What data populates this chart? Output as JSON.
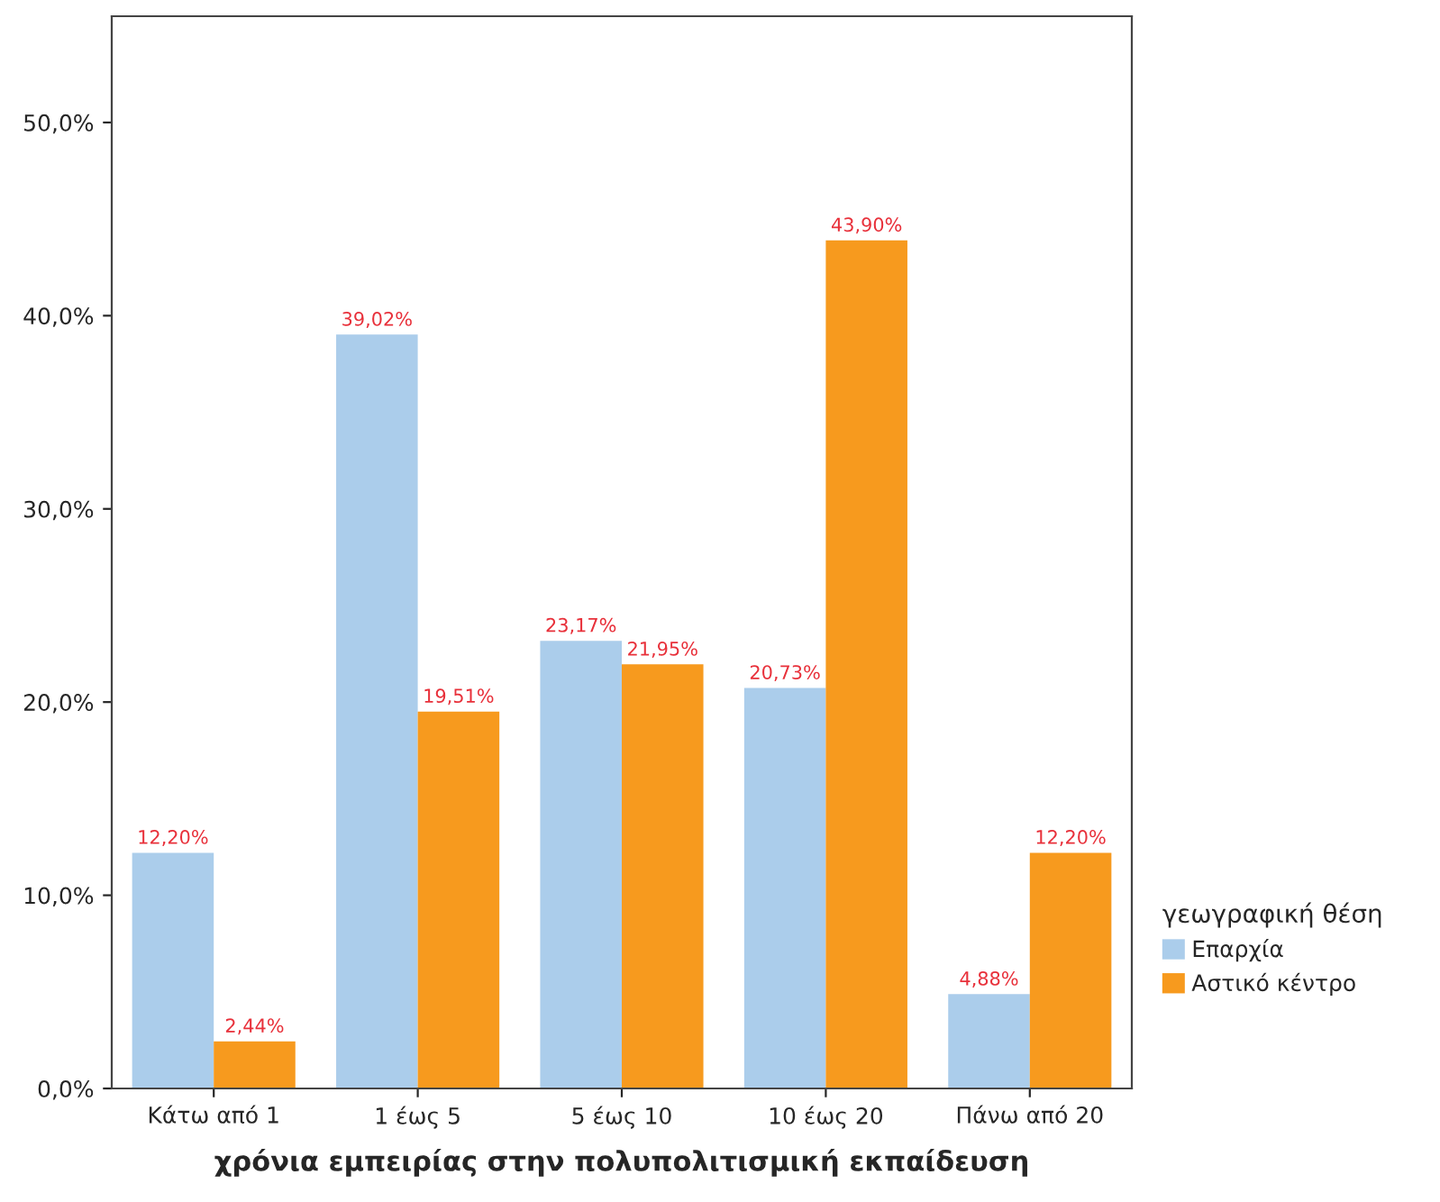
{
  "chart_data": {
    "type": "bar",
    "xlabel": "χρόνια εμπειρίας στην πολυπολιτισμική εκπαίδευση",
    "legend_title": "γεωγραφική θέση",
    "categories": [
      "Κάτω από 1",
      "1 έως 5",
      "5 έως 10",
      "10 έως 20",
      "Πάνω από 20"
    ],
    "series": [
      {
        "name": "Επαρχία",
        "color": "#abcdeb",
        "values": [
          12.2,
          39.02,
          23.17,
          20.73,
          4.88
        ],
        "value_labels": [
          "12,20%",
          "39,02%",
          "23,17%",
          "20,73%",
          "4,88%"
        ]
      },
      {
        "name": "Αστικό κέντρο",
        "color": "#f79a1e",
        "values": [
          2.44,
          19.51,
          21.95,
          43.9,
          12.2
        ],
        "value_labels": [
          "2,44%",
          "19,51%",
          "21,95%",
          "43,90%",
          "12,20%"
        ]
      }
    ],
    "ylim": [
      0,
      55.5
    ],
    "yticks": [
      {
        "value": 0,
        "label": "0,0%"
      },
      {
        "value": 10,
        "label": "10,0%"
      },
      {
        "value": 20,
        "label": "20,0%"
      },
      {
        "value": 30,
        "label": "30,0%"
      },
      {
        "value": 40,
        "label": "40,0%"
      },
      {
        "value": 50,
        "label": "50,0%"
      }
    ],
    "grid": false,
    "legend": "right"
  }
}
